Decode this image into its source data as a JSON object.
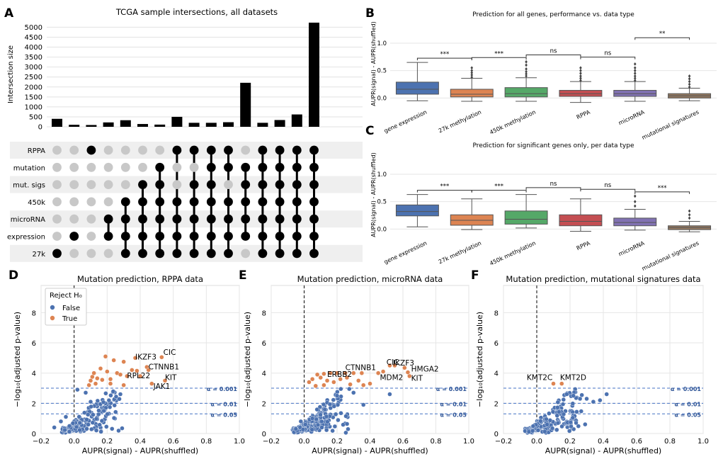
{
  "chart_data": [
    {
      "panel_letter": "A",
      "type": "bar",
      "title": "TCGA sample intersections, all datasets",
      "ylabel": "Intersection size",
      "ylim": [
        0,
        5300
      ],
      "yticks": [
        0,
        500,
        1000,
        1500,
        2000,
        2500,
        3000,
        3500,
        4000,
        4500,
        5000
      ],
      "values": [
        400,
        100,
        90,
        220,
        330,
        140,
        110,
        500,
        200,
        200,
        230,
        2210,
        200,
        340,
        620,
        5230
      ],
      "set_labels": [
        "RPPA",
        "mutation",
        "mut. sigs",
        "450k",
        "microRNA",
        "expression",
        "27k"
      ],
      "memberships": [
        [
          6
        ],
        [
          5
        ],
        [
          0
        ],
        [
          4,
          5
        ],
        [
          3,
          4,
          5,
          6
        ],
        [
          2,
          3,
          4,
          5,
          6
        ],
        [
          1,
          2,
          3,
          4,
          5,
          6
        ],
        [
          0,
          3,
          4,
          5,
          6
        ],
        [
          0,
          2,
          3,
          4,
          5,
          6
        ],
        [
          0,
          1,
          2,
          3,
          4,
          5,
          6
        ],
        [
          0,
          1,
          3,
          4,
          5,
          6
        ],
        [
          1,
          2,
          3,
          4,
          5
        ],
        [
          0,
          1,
          2,
          3,
          4,
          5,
          6
        ],
        [
          0,
          1,
          2,
          3,
          4,
          5,
          6
        ],
        [
          0,
          1,
          2,
          3,
          4,
          5,
          6
        ],
        [
          0,
          1,
          2,
          3,
          4,
          5,
          6
        ]
      ]
    },
    {
      "panel_letter": "B",
      "type": "box",
      "title": "Prediction for all genes, performance vs. data type",
      "ylabel": "AUPR(signal) - AUPR(shuffled)",
      "ylim": [
        -0.15,
        1.4
      ],
      "yticks": [
        "0.0",
        "0.5",
        "1.0"
      ],
      "categories": [
        "gene expression",
        "27k methylation",
        "450k methylation",
        "RPPA",
        "microRNA",
        "mutational signatures"
      ],
      "boxes": [
        {
          "q1": 0.07,
          "median": 0.16,
          "q3": 0.29,
          "low": -0.05,
          "high": 0.65,
          "outliers": []
        },
        {
          "q1": 0.02,
          "median": 0.07,
          "q3": 0.16,
          "low": -0.06,
          "high": 0.36,
          "outliers": [
            0.38,
            0.42,
            0.46,
            0.5,
            0.55
          ]
        },
        {
          "q1": 0.02,
          "median": 0.08,
          "q3": 0.19,
          "low": -0.06,
          "high": 0.37,
          "outliers": [
            0.4,
            0.44,
            0.48,
            0.53,
            0.6,
            0.66
          ]
        },
        {
          "q1": 0.03,
          "median": 0.08,
          "q3": 0.14,
          "low": -0.08,
          "high": 0.3,
          "outliers": [
            0.32,
            0.36,
            0.4,
            0.45,
            0.5,
            0.55
          ]
        },
        {
          "q1": 0.03,
          "median": 0.08,
          "q3": 0.14,
          "low": -0.06,
          "high": 0.3,
          "outliers": [
            0.32,
            0.36,
            0.4,
            0.45,
            0.5,
            0.55,
            0.62
          ]
        },
        {
          "q1": 0.0,
          "median": 0.04,
          "q3": 0.08,
          "low": -0.05,
          "high": 0.18,
          "outliers": [
            0.2,
            0.25,
            0.3,
            0.35,
            0.4
          ]
        }
      ],
      "colors": [
        "#4c72b0",
        "#dd8452",
        "#55a868",
        "#c44e52",
        "#8172b3",
        "#937860"
      ],
      "significance": [
        {
          "from": 0,
          "to": 1,
          "label": "***"
        },
        {
          "from": 1,
          "to": 2,
          "label": "***"
        },
        {
          "from": 2,
          "to": 3,
          "label": "ns"
        },
        {
          "from": 3,
          "to": 4,
          "label": "ns"
        },
        {
          "from": 4,
          "to": 5,
          "label": "**"
        }
      ]
    },
    {
      "panel_letter": "C",
      "type": "box",
      "title": "Prediction for significant genes only, per data type",
      "ylabel": "AUPR(signal) - AUPR(shuffled)",
      "ylim": [
        -0.15,
        1.4
      ],
      "yticks": [
        "0.0",
        "0.5",
        "1.0"
      ],
      "categories": [
        "gene expression",
        "27k methylation",
        "450k methylation",
        "RPPA",
        "microRNA",
        "mutational signatures"
      ],
      "boxes": [
        {
          "q1": 0.24,
          "median": 0.32,
          "q3": 0.44,
          "low": 0.04,
          "high": 0.63,
          "outliers": []
        },
        {
          "q1": 0.07,
          "median": 0.16,
          "q3": 0.26,
          "low": -0.01,
          "high": 0.55,
          "outliers": []
        },
        {
          "q1": 0.09,
          "median": 0.18,
          "q3": 0.33,
          "low": 0.02,
          "high": 0.63,
          "outliers": []
        },
        {
          "q1": 0.06,
          "median": 0.14,
          "q3": 0.26,
          "low": -0.04,
          "high": 0.55,
          "outliers": []
        },
        {
          "q1": 0.06,
          "median": 0.12,
          "q3": 0.2,
          "low": -0.02,
          "high": 0.36,
          "outliers": [
            0.42,
            0.5,
            0.6
          ]
        },
        {
          "q1": -0.01,
          "median": 0.03,
          "q3": 0.06,
          "low": -0.05,
          "high": 0.14,
          "outliers": [
            0.2,
            0.26,
            0.33
          ]
        }
      ],
      "colors": [
        "#4c72b0",
        "#dd8452",
        "#55a868",
        "#c44e52",
        "#8172b3",
        "#937860"
      ],
      "significance": [
        {
          "from": 0,
          "to": 1,
          "label": "***"
        },
        {
          "from": 1,
          "to": 2,
          "label": "***"
        },
        {
          "from": 2,
          "to": 3,
          "label": "ns"
        },
        {
          "from": 3,
          "to": 4,
          "label": "ns"
        },
        {
          "from": 4,
          "to": 5,
          "label": "***"
        }
      ]
    },
    {
      "panel_letter": "D",
      "type": "scatter",
      "title": "Mutation prediction, RPPA data",
      "seed": 11,
      "xlabel": "AUPR(signal) - AUPR(shuffled)",
      "ylabel": "−log₁₀(adjusted p-value)",
      "xlim": [
        -0.2,
        1.0
      ],
      "ylim": [
        0,
        9.8
      ],
      "xticks": [
        "−0.2",
        "0.0",
        "0.2",
        "0.4",
        "0.6",
        "0.8",
        "1.0"
      ],
      "yticks": [
        "0",
        "2",
        "4",
        "6",
        "8"
      ],
      "thresholds": [
        {
          "value": 3.0,
          "label": "α = 0.001"
        },
        {
          "value": 2.0,
          "label": "α = 0.01"
        },
        {
          "value": 1.3,
          "label": "α = 0.05"
        }
      ],
      "legend": {
        "title": "Reject H₀",
        "entries": [
          "False",
          "True"
        ]
      },
      "true_points": [
        [
          0.19,
          5.1
        ],
        [
          0.24,
          4.85
        ],
        [
          0.3,
          4.75
        ],
        [
          0.37,
          5.0
        ],
        [
          0.53,
          5.05
        ],
        [
          0.44,
          4.4
        ],
        [
          0.45,
          4.2
        ],
        [
          0.38,
          4.15
        ],
        [
          0.35,
          4.2
        ],
        [
          0.16,
          4.3
        ],
        [
          0.2,
          4.1
        ],
        [
          0.26,
          4.0
        ],
        [
          0.32,
          3.8
        ],
        [
          0.11,
          3.75
        ],
        [
          0.14,
          3.65
        ],
        [
          0.1,
          3.5
        ],
        [
          0.22,
          3.6
        ],
        [
          0.17,
          3.55
        ],
        [
          0.28,
          3.9
        ],
        [
          0.12,
          4.0
        ],
        [
          0.55,
          3.5
        ],
        [
          0.47,
          3.3
        ],
        [
          0.3,
          3.2
        ],
        [
          0.22,
          3.3
        ],
        [
          0.09,
          3.2
        ],
        [
          0.13,
          3.3
        ],
        [
          0.4,
          3.8
        ]
      ],
      "labels": [
        {
          "text": "CIC",
          "x": 0.54,
          "y": 5.2
        },
        {
          "text": "IKZF3",
          "x": 0.37,
          "y": 4.9
        },
        {
          "text": "CTNNB1",
          "x": 0.45,
          "y": 4.25
        },
        {
          "text": "RPL22",
          "x": 0.32,
          "y": 3.65
        },
        {
          "text": "KIT",
          "x": 0.55,
          "y": 3.55
        },
        {
          "text": "JAK1",
          "x": 0.48,
          "y": 2.95
        }
      ],
      "false_extra": [
        [
          -0.12,
          0.4
        ],
        [
          -0.08,
          0.8
        ],
        [
          -0.05,
          1.1
        ],
        [
          0.02,
          2.9
        ],
        [
          0.07,
          2.7
        ],
        [
          0.28,
          2.6
        ],
        [
          0.18,
          1.5
        ],
        [
          0.1,
          2.1
        ]
      ]
    },
    {
      "panel_letter": "E",
      "type": "scatter",
      "title": "Mutation prediction, microRNA data",
      "seed": 23,
      "xlabel": "AUPR(signal) - AUPR(shuffled)",
      "ylabel": "−log₁₀(adjusted p-value)",
      "xlim": [
        -0.2,
        1.0
      ],
      "ylim": [
        0,
        9.8
      ],
      "xticks": [
        "−0.2",
        "0.0",
        "0.2",
        "0.4",
        "0.6",
        "0.8",
        "1.0"
      ],
      "yticks": [
        "0",
        "2",
        "4",
        "6",
        "8"
      ],
      "thresholds": [
        {
          "value": 3.0,
          "label": "α = 0.001"
        },
        {
          "value": 2.0,
          "label": "α = 0.01"
        },
        {
          "value": 1.3,
          "label": "α = 0.05"
        }
      ],
      "true_points": [
        [
          0.52,
          4.5
        ],
        [
          0.55,
          4.5
        ],
        [
          0.61,
          4.35
        ],
        [
          0.63,
          4.05
        ],
        [
          0.64,
          3.8
        ],
        [
          0.48,
          4.1
        ],
        [
          0.45,
          4.0
        ],
        [
          0.35,
          4.0
        ],
        [
          0.3,
          4.0
        ],
        [
          0.25,
          4.0
        ],
        [
          0.2,
          4.0
        ],
        [
          0.16,
          4.0
        ],
        [
          0.12,
          3.95
        ],
        [
          0.08,
          3.9
        ],
        [
          0.05,
          3.6
        ],
        [
          0.03,
          3.4
        ],
        [
          0.1,
          3.7
        ],
        [
          0.14,
          3.5
        ],
        [
          0.18,
          3.4
        ],
        [
          0.22,
          3.6
        ],
        [
          0.26,
          3.7
        ],
        [
          0.33,
          3.5
        ],
        [
          0.4,
          3.3
        ],
        [
          0.28,
          3.25
        ],
        [
          0.36,
          3.2
        ],
        [
          0.07,
          3.15
        ],
        [
          0.12,
          3.2
        ]
      ],
      "labels": [
        {
          "text": "CIC",
          "x": 0.5,
          "y": 4.55
        },
        {
          "text": "IKZF3",
          "x": 0.54,
          "y": 4.5
        },
        {
          "text": "CTNNB1",
          "x": 0.25,
          "y": 4.2
        },
        {
          "text": "HMGA2",
          "x": 0.65,
          "y": 4.1
        },
        {
          "text": "ERBB2",
          "x": 0.14,
          "y": 3.75
        },
        {
          "text": "MDM2",
          "x": 0.46,
          "y": 3.55
        },
        {
          "text": "KIT",
          "x": 0.65,
          "y": 3.5
        }
      ],
      "false_extra": [
        [
          -0.05,
          0.3
        ],
        [
          -0.02,
          0.8
        ],
        [
          0.36,
          1.9
        ],
        [
          0.3,
          2.7
        ],
        [
          0.2,
          2.5
        ],
        [
          0.52,
          2.6
        ],
        [
          0.05,
          1.0
        ]
      ]
    },
    {
      "panel_letter": "F",
      "type": "scatter",
      "title": "Mutation prediction, mutational signatures data",
      "seed": 37,
      "xlabel": "AUPR(signal) - AUPR(shuffled)",
      "ylabel": "−log₁₀(adjusted p-value)",
      "xlim": [
        -0.2,
        1.0
      ],
      "ylim": [
        0,
        9.8
      ],
      "xticks": [
        "−0.2",
        "0.0",
        "0.2",
        "0.4",
        "0.6",
        "0.8",
        "1.0"
      ],
      "yticks": [
        "0",
        "2",
        "4",
        "6",
        "8"
      ],
      "thresholds": [
        {
          "value": 3.0,
          "label": "α = 0.001"
        },
        {
          "value": 2.0,
          "label": "α = 0.01"
        },
        {
          "value": 1.3,
          "label": "α = 0.05"
        }
      ],
      "true_points": [
        [
          0.1,
          3.3
        ],
        [
          0.15,
          3.3
        ]
      ],
      "labels": [
        {
          "text": "KMT2C",
          "x": -0.06,
          "y": 3.55
        },
        {
          "text": "KMT2D",
          "x": 0.14,
          "y": 3.55
        }
      ],
      "false_extra": [
        [
          0.38,
          2.2
        ],
        [
          0.42,
          2.6
        ],
        [
          0.3,
          2.3
        ],
        [
          0.26,
          2.3
        ],
        [
          0.22,
          2.5
        ],
        [
          0.34,
          2.1
        ],
        [
          0.18,
          2.6
        ]
      ]
    }
  ]
}
